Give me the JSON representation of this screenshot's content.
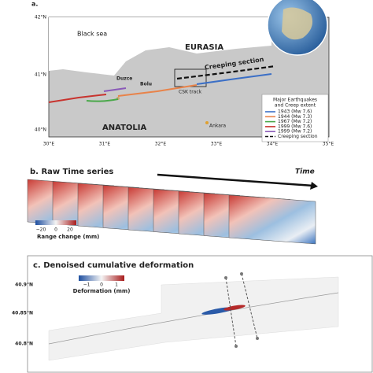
{
  "panel_a": {
    "label": "a.",
    "lat_labels": [
      "42°N",
      "41°N",
      "40°N"
    ],
    "lon_labels": [
      "30°E",
      "31°E",
      "32°E",
      "33°E",
      "34°E",
      "35°E"
    ],
    "places": {
      "sea": "Black sea",
      "north": "EURASIA",
      "south": "ANATOLIA",
      "duzce": "Duzce",
      "bolu": "Bolu",
      "ankara": "Ankara",
      "creep": "Creeping section",
      "track": "CSK track"
    },
    "legend": {
      "title": [
        "Major Earthquakes",
        "and Creep extent"
      ],
      "entries": [
        {
          "label": "1943 (Mw 7.6)",
          "color": "#3b6fc6"
        },
        {
          "label": "1944 (Mw 7.3)",
          "color": "#e8834a"
        },
        {
          "label": "1967 (Mw 7.2)",
          "color": "#4aa84a"
        },
        {
          "label": "1999 (Mw 7.6)",
          "color": "#c8332e"
        },
        {
          "label": "1999 (Mw 7.2)",
          "color": "#8a5ab8"
        },
        {
          "label": "Creeping section",
          "color": "#111111"
        }
      ]
    }
  },
  "panel_b": {
    "title": "b. Raw Time series",
    "arrow": "Time",
    "colorbar": {
      "ticks": [
        "−20",
        "0",
        "20"
      ],
      "label": "Range change (mm)"
    }
  },
  "panel_c": {
    "title": "c. Denoised cumulative deformation",
    "colorbar": {
      "ticks": [
        "−1",
        "0",
        "1"
      ],
      "label": "Deformation (mm)"
    },
    "lat_labels": [
      "40.9°N",
      "40.85°N",
      "40.8°N"
    ]
  }
}
